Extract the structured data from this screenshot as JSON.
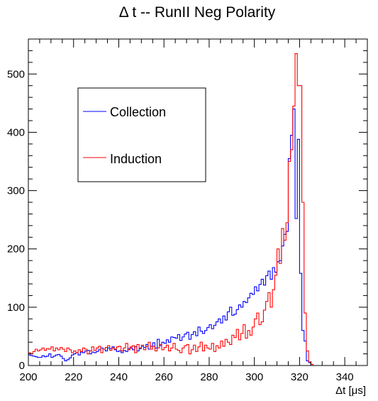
{
  "chart_data": {
    "type": "line",
    "title": "Δ t -- RunII Neg Polarity",
    "xlabel": "Δt [μs]",
    "ylabel": "",
    "xlim": [
      200,
      350
    ],
    "ylim": [
      0,
      560
    ],
    "x_ticks": [
      "200",
      "220",
      "240",
      "260",
      "280",
      "300",
      "320",
      "340"
    ],
    "y_ticks": [
      "0",
      "100",
      "200",
      "300",
      "400",
      "500"
    ],
    "legend_position": "top-left",
    "grid": false,
    "bin_width": 1,
    "series": [
      {
        "name": "Collection",
        "color": "#0000ff",
        "x": [
          200,
          201,
          202,
          203,
          204,
          205,
          206,
          207,
          208,
          209,
          210,
          211,
          212,
          213,
          214,
          215,
          216,
          217,
          218,
          219,
          220,
          221,
          222,
          223,
          224,
          225,
          226,
          227,
          228,
          229,
          230,
          231,
          232,
          233,
          234,
          235,
          236,
          237,
          238,
          239,
          240,
          241,
          242,
          243,
          244,
          245,
          246,
          247,
          248,
          249,
          250,
          251,
          252,
          253,
          254,
          255,
          256,
          257,
          258,
          259,
          260,
          261,
          262,
          263,
          264,
          265,
          266,
          267,
          268,
          269,
          270,
          271,
          272,
          273,
          274,
          275,
          276,
          277,
          278,
          279,
          280,
          281,
          282,
          283,
          284,
          285,
          286,
          287,
          288,
          289,
          290,
          291,
          292,
          293,
          294,
          295,
          296,
          297,
          298,
          299,
          300,
          301,
          302,
          303,
          304,
          305,
          306,
          307,
          308,
          309,
          310,
          311,
          312,
          313,
          314,
          315,
          316,
          317,
          318,
          319,
          320,
          321,
          322,
          323,
          324,
          325,
          326,
          327,
          328,
          329,
          330,
          331,
          332,
          333,
          334,
          335,
          336,
          337,
          338,
          339,
          340,
          341,
          342,
          343,
          344,
          345,
          346,
          347,
          348,
          349
        ],
        "values": [
          18,
          17,
          16,
          15,
          14,
          14,
          17,
          15,
          16,
          20,
          14,
          16,
          18,
          19,
          16,
          12,
          8,
          10,
          13,
          18,
          20,
          22,
          18,
          23,
          22,
          25,
          26,
          20,
          23,
          22,
          24,
          27,
          30,
          28,
          25,
          30,
          29,
          32,
          27,
          24,
          25,
          22,
          26,
          24,
          29,
          30,
          27,
          32,
          25,
          29,
          33,
          31,
          36,
          28,
          33,
          39,
          30,
          45,
          34,
          40,
          38,
          44,
          40,
          49,
          48,
          47,
          53,
          43,
          49,
          54,
          57,
          45,
          53,
          58,
          51,
          66,
          59,
          55,
          60,
          65,
          70,
          63,
          69,
          75,
          80,
          73,
          85,
          78,
          92,
          100,
          86,
          88,
          96,
          104,
          100,
          110,
          108,
          116,
          124,
          122,
          135,
          128,
          139,
          148,
          138,
          154,
          162,
          148,
          168,
          160,
          178,
          180,
          205,
          225,
          230,
          355,
          395,
          440,
          252,
          388,
          158,
          60,
          42,
          8,
          5,
          0,
          0,
          0,
          0,
          0,
          0,
          0,
          0,
          0,
          0,
          0,
          0,
          0,
          0,
          0,
          0,
          0,
          0,
          0,
          0,
          0,
          0,
          0,
          0,
          0
        ]
      },
      {
        "name": "Induction",
        "color": "#ff0000",
        "x": [
          200,
          201,
          202,
          203,
          204,
          205,
          206,
          207,
          208,
          209,
          210,
          211,
          212,
          213,
          214,
          215,
          216,
          217,
          218,
          219,
          220,
          221,
          222,
          223,
          224,
          225,
          226,
          227,
          228,
          229,
          230,
          231,
          232,
          233,
          234,
          235,
          236,
          237,
          238,
          239,
          240,
          241,
          242,
          243,
          244,
          245,
          246,
          247,
          248,
          249,
          250,
          251,
          252,
          253,
          254,
          255,
          256,
          257,
          258,
          259,
          260,
          261,
          262,
          263,
          264,
          265,
          266,
          267,
          268,
          269,
          270,
          271,
          272,
          273,
          274,
          275,
          276,
          277,
          278,
          279,
          280,
          281,
          282,
          283,
          284,
          285,
          286,
          287,
          288,
          289,
          290,
          291,
          292,
          293,
          294,
          295,
          296,
          297,
          298,
          299,
          300,
          301,
          302,
          303,
          304,
          305,
          306,
          307,
          308,
          309,
          310,
          311,
          312,
          313,
          314,
          315,
          316,
          317,
          318,
          319,
          320,
          321,
          322,
          323,
          324,
          325,
          326,
          327,
          328,
          329,
          330,
          331,
          332,
          333,
          334,
          335,
          336,
          337,
          338,
          339,
          340,
          341,
          342,
          343,
          344,
          345,
          346,
          347,
          348,
          349
        ],
        "values": [
          22,
          20,
          24,
          28,
          25,
          27,
          30,
          26,
          29,
          28,
          32,
          25,
          30,
          27,
          31,
          28,
          24,
          30,
          27,
          22,
          25,
          22,
          27,
          24,
          30,
          28,
          20,
          25,
          32,
          26,
          30,
          33,
          22,
          28,
          31,
          34,
          26,
          30,
          28,
          32,
          33,
          25,
          30,
          38,
          27,
          32,
          34,
          22,
          36,
          30,
          35,
          27,
          33,
          40,
          28,
          33,
          25,
          30,
          36,
          27,
          31,
          35,
          25,
          30,
          38,
          28,
          26,
          22,
          30,
          34,
          36,
          20,
          27,
          35,
          24,
          32,
          40,
          25,
          35,
          30,
          28,
          38,
          24,
          34,
          30,
          42,
          33,
          45,
          40,
          36,
          52,
          48,
          62,
          44,
          55,
          70,
          47,
          60,
          52,
          66,
          80,
          90,
          70,
          75,
          95,
          110,
          125,
          100,
          130,
          155,
          200,
          175,
          235,
          215,
          245,
          350,
          370,
          445,
          535,
          480,
          480,
          280,
          90,
          25,
          6,
          2,
          0,
          0,
          0,
          0,
          0,
          0,
          0,
          0,
          0,
          0,
          0,
          0,
          0,
          0,
          0,
          0,
          0,
          0,
          0,
          0,
          0,
          0,
          0,
          0
        ]
      }
    ]
  }
}
